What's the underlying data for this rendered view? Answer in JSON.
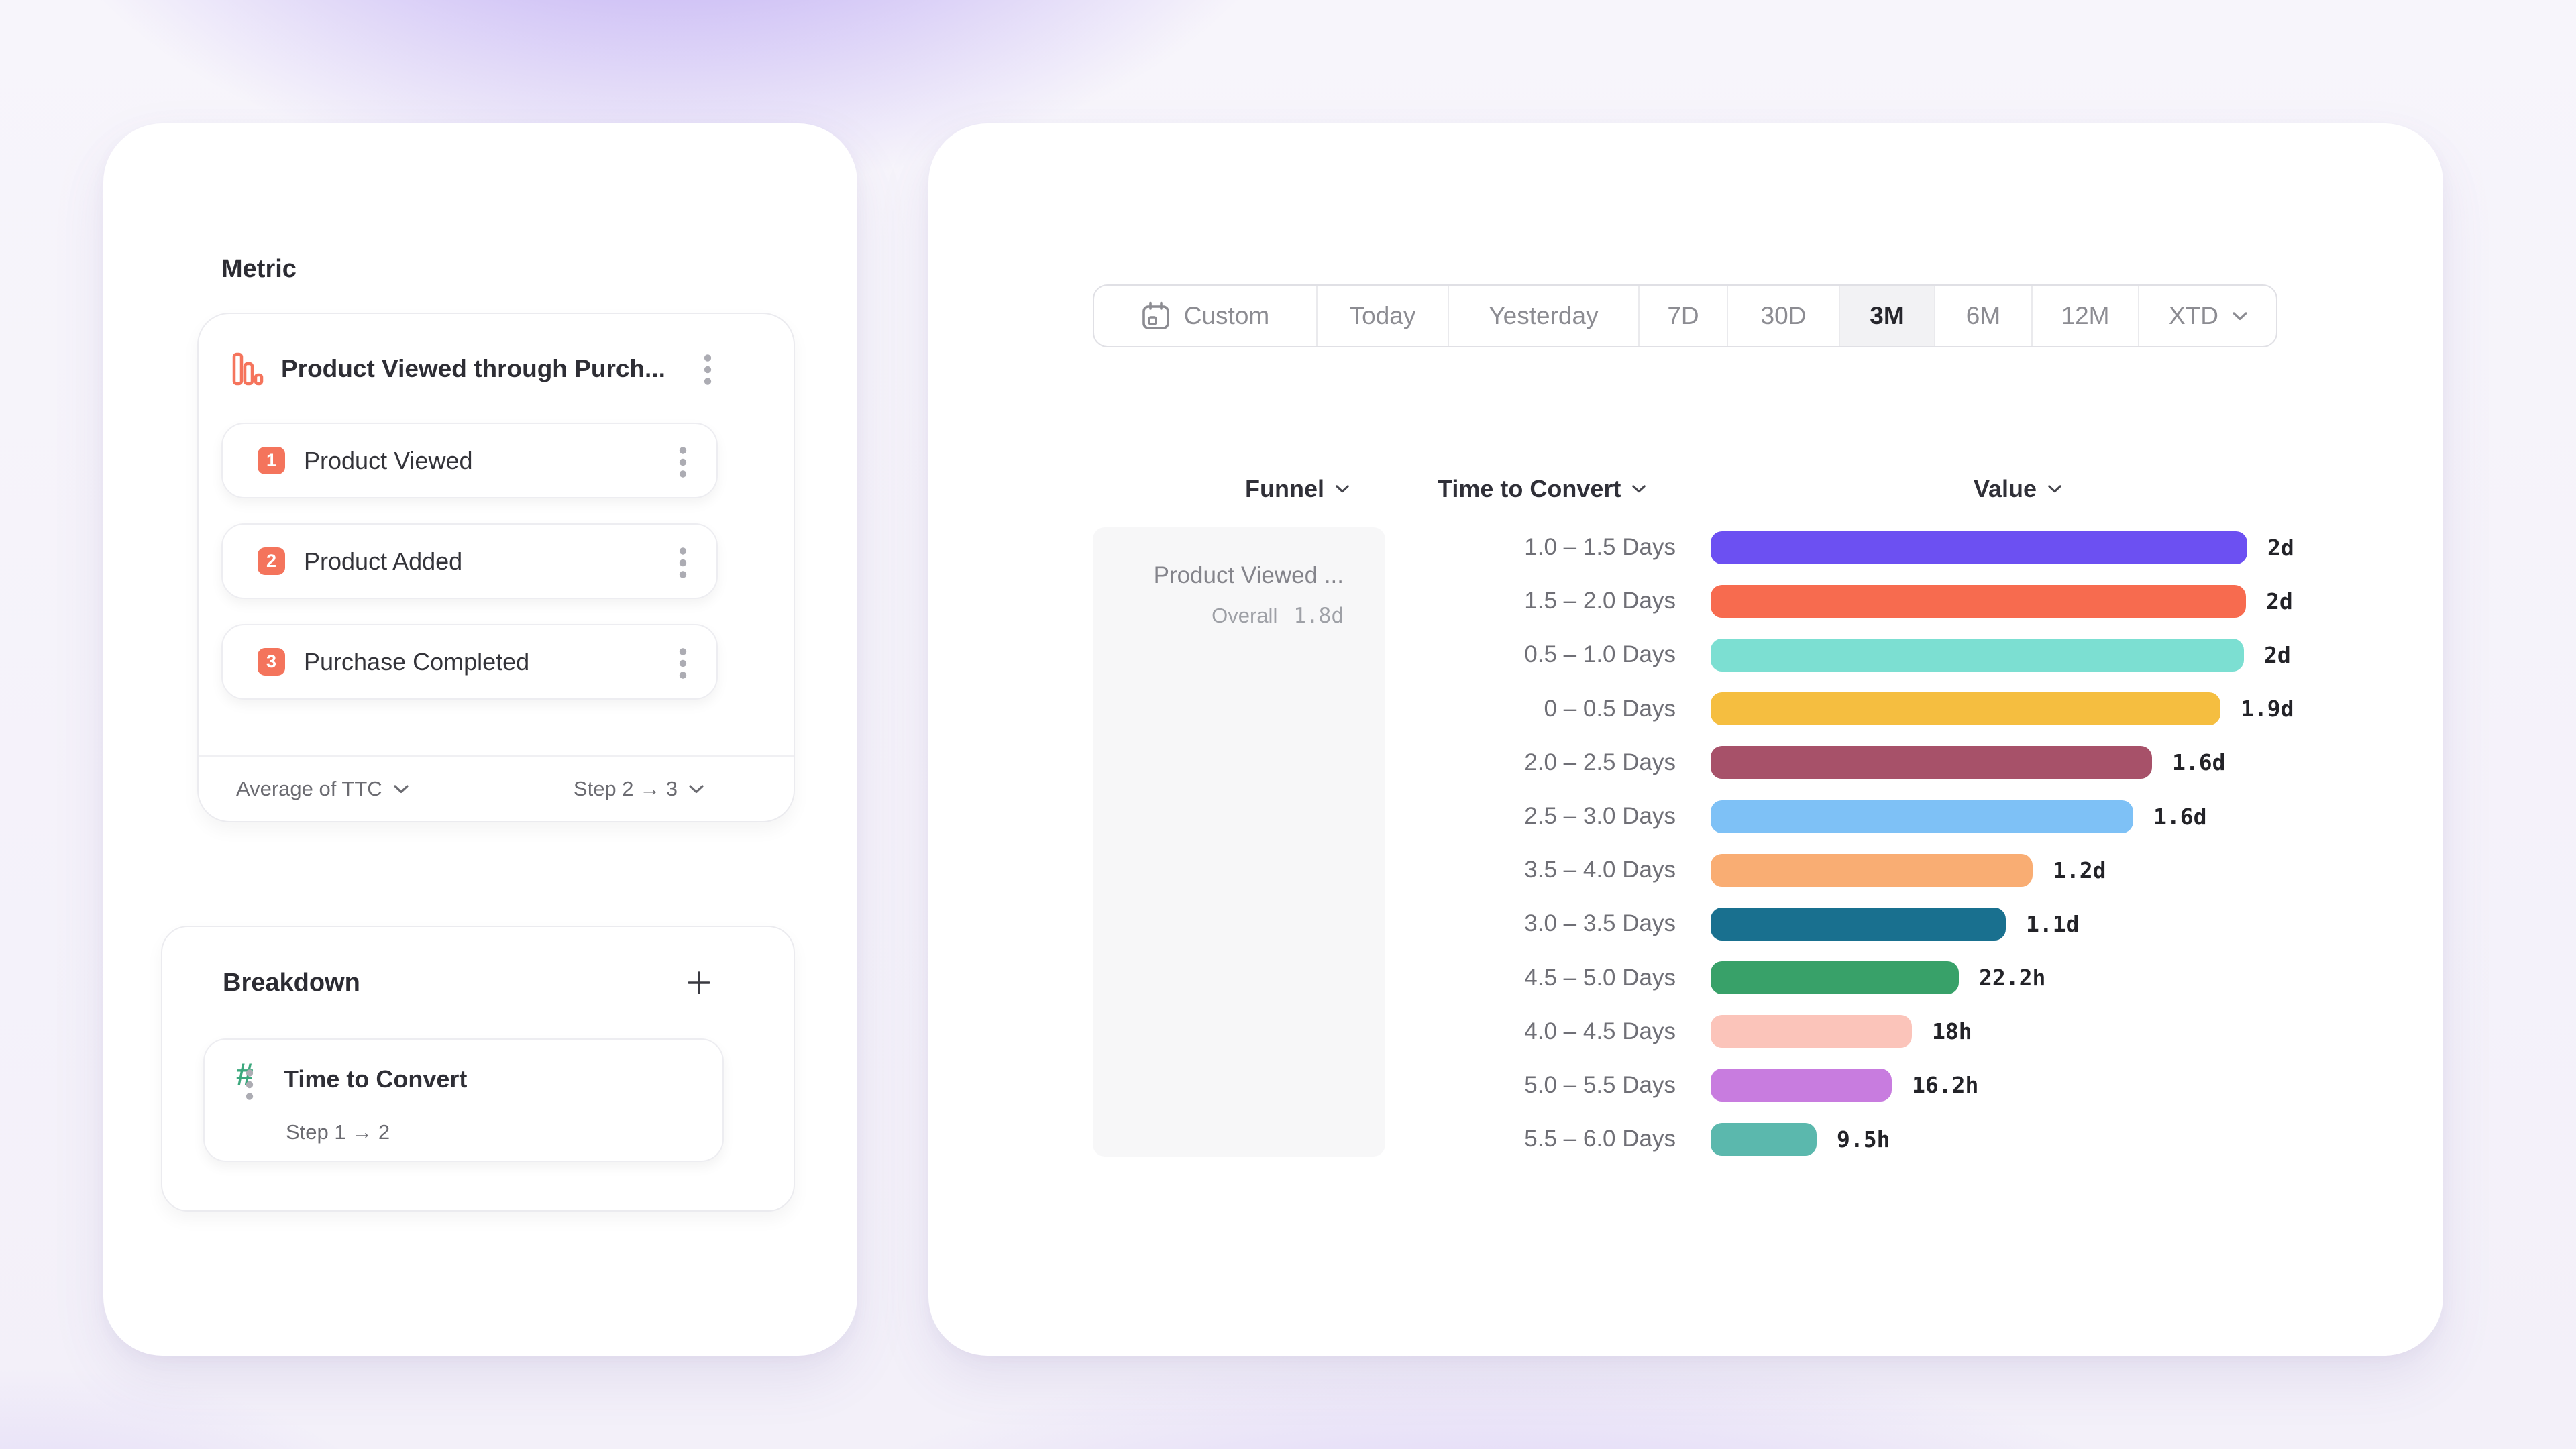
{
  "colors": {
    "accent_salmon": "#F4745C",
    "accent_green": "#3CA87D",
    "selected_tab_bg": "#F2F2F4",
    "funnel_cell_bg": "#F7F7F8",
    "page_glow_purple": "#9475EE"
  },
  "left_panel": {
    "metric_section": {
      "title": "Metric",
      "metric_name": "Product Viewed through Purch...",
      "metric_icon": "funnel-chart-icon",
      "steps": [
        {
          "num": "1",
          "label": "Product Viewed"
        },
        {
          "num": "2",
          "label": "Product Added"
        },
        {
          "num": "3",
          "label": "Purchase Completed"
        }
      ],
      "aggregation": "Average of TTC",
      "step_range": "Step 2 → 3"
    },
    "breakdown_section": {
      "title": "Breakdown",
      "add_icon": "plus-icon",
      "item_icon": "hash-icon",
      "item_label": "Time to Convert",
      "item_sub": "Step 1 → 2"
    }
  },
  "right_panel": {
    "date_tabs": {
      "selected": "3M",
      "items": [
        {
          "label": "Custom",
          "icon": "calendar-icon"
        },
        {
          "label": "Today"
        },
        {
          "label": "Yesterday"
        },
        {
          "label": "7D"
        },
        {
          "label": "30D"
        },
        {
          "label": "3M"
        },
        {
          "label": "6M"
        },
        {
          "label": "12M"
        },
        {
          "label": "XTD",
          "has_chevron": true
        }
      ]
    },
    "columns": {
      "funnel": "Funnel",
      "time_to_convert": "Time to Convert",
      "value": "Value"
    },
    "funnel_cell": {
      "name": "Product Viewed ...",
      "overall_label": "Overall",
      "overall_value": "1.8d"
    }
  },
  "chart_data": {
    "type": "bar",
    "orientation": "horizontal",
    "title": "Time to Convert by bucket",
    "xlabel": "Value",
    "ylabel": "Time to Convert",
    "xlim": [
      0,
      48
    ],
    "unit": "hours",
    "grid": false,
    "legend": "none",
    "categories": [
      "1.0 – 1.5 Days",
      "1.5 – 2.0 Days",
      "0.5 – 1.0 Days",
      "0 – 0.5 Days",
      "2.0 – 2.5 Days",
      "2.5 – 3.0 Days",
      "3.5 – 4.0 Days",
      "3.0 – 3.5 Days",
      "4.5 – 5.0 Days",
      "4.0 – 4.5 Days",
      "5.0 – 5.5 Days",
      "5.5 – 6.0 Days"
    ],
    "values_hours": [
      48,
      47.9,
      47.7,
      45.6,
      39.5,
      37.8,
      28.8,
      26.4,
      22.2,
      18,
      16.2,
      9.5
    ],
    "value_labels": [
      "2d",
      "2d",
      "2d",
      "1.9d",
      "1.6d",
      "1.6d",
      "1.2d",
      "1.1d",
      "22.2h",
      "18h",
      "16.2h",
      "9.5h"
    ],
    "bar_colors": [
      "#6C50F2",
      "#F76B4F",
      "#7CDFD2",
      "#F5BE40",
      "#A75169",
      "#7EC1F6",
      "#F9AD73",
      "#19708F",
      "#38A169",
      "#FBC4BA",
      "#C87CDF",
      "#5BB8AD"
    ]
  }
}
